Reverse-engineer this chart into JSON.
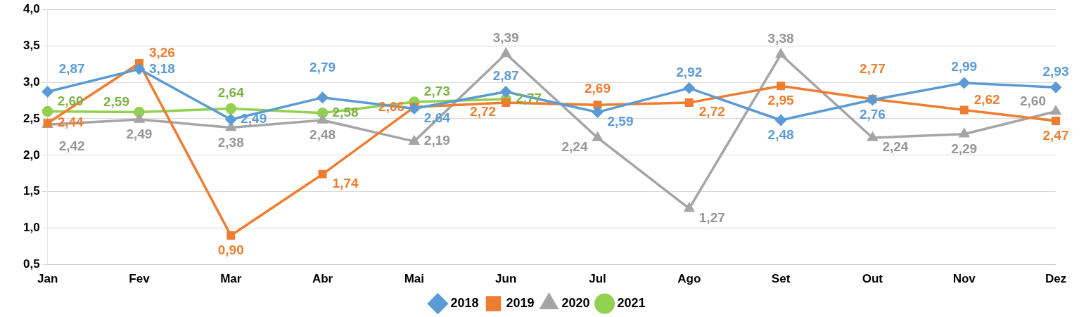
{
  "chart_data": {
    "type": "line",
    "categories": [
      "Jan",
      "Fev",
      "Mar",
      "Abr",
      "Mai",
      "Jun",
      "Jul",
      "Ago",
      "Set",
      "Out",
      "Nov",
      "Dez"
    ],
    "ylim": [
      0.5,
      4.0
    ],
    "yticks": [
      {
        "value": 0.5,
        "label": "0,5"
      },
      {
        "value": 1.0,
        "label": "1,0"
      },
      {
        "value": 1.5,
        "label": "1,5"
      },
      {
        "value": 2.0,
        "label": "2,0"
      },
      {
        "value": 2.5,
        "label": "2,5"
      },
      {
        "value": 3.0,
        "label": "3,0"
      },
      {
        "value": 3.5,
        "label": "3,5"
      },
      {
        "value": 4.0,
        "label": "4,0"
      }
    ],
    "grid": "y",
    "legend": "bottom",
    "line_style": "solid",
    "series": [
      {
        "name": "2018",
        "color": "#5b9bd5",
        "marker": "diamond",
        "values": [
          2.87,
          3.18,
          2.49,
          2.79,
          2.64,
          2.87,
          2.59,
          2.92,
          2.48,
          2.76,
          2.99,
          2.93
        ],
        "value_labels": [
          "2,87",
          "3,18",
          "2,49",
          "2,79",
          "2,64",
          "2,87",
          "2,59",
          "2,92",
          "2,48",
          "2,76",
          "2,99",
          "2,93"
        ]
      },
      {
        "name": "2019",
        "color": "#ed7d31",
        "marker": "square",
        "values": [
          2.44,
          3.26,
          0.9,
          1.74,
          2.66,
          2.72,
          2.69,
          2.72,
          2.95,
          2.77,
          2.62,
          2.47
        ],
        "value_labels": [
          "2,44",
          "3,26",
          "0,90",
          "1,74",
          "2,66",
          "2,72",
          "2,69",
          "2,72",
          "2,95",
          "2,77",
          "2,62",
          "2,47"
        ]
      },
      {
        "name": "2020",
        "color": "#a5a5a5",
        "marker": "triangle",
        "values": [
          2.42,
          2.49,
          2.38,
          2.48,
          2.19,
          3.39,
          2.24,
          1.27,
          3.38,
          2.24,
          2.29,
          2.6
        ],
        "value_labels": [
          "2,42",
          "2,49",
          "2,38",
          "2,48",
          "2,19",
          "3,39",
          "2,24",
          "1,27",
          "3,38",
          "2,24",
          "2,29",
          "2,60"
        ]
      },
      {
        "name": "2021",
        "color": "#92d050",
        "marker": "circle",
        "values": [
          2.6,
          2.59,
          2.64,
          2.58,
          2.73,
          2.77,
          null,
          null,
          null,
          null,
          null,
          null
        ],
        "value_labels": [
          "2,60",
          "2,59",
          "2,64",
          "2,58",
          "2,73",
          "2,77",
          null,
          null,
          null,
          null,
          null,
          null
        ]
      }
    ]
  }
}
